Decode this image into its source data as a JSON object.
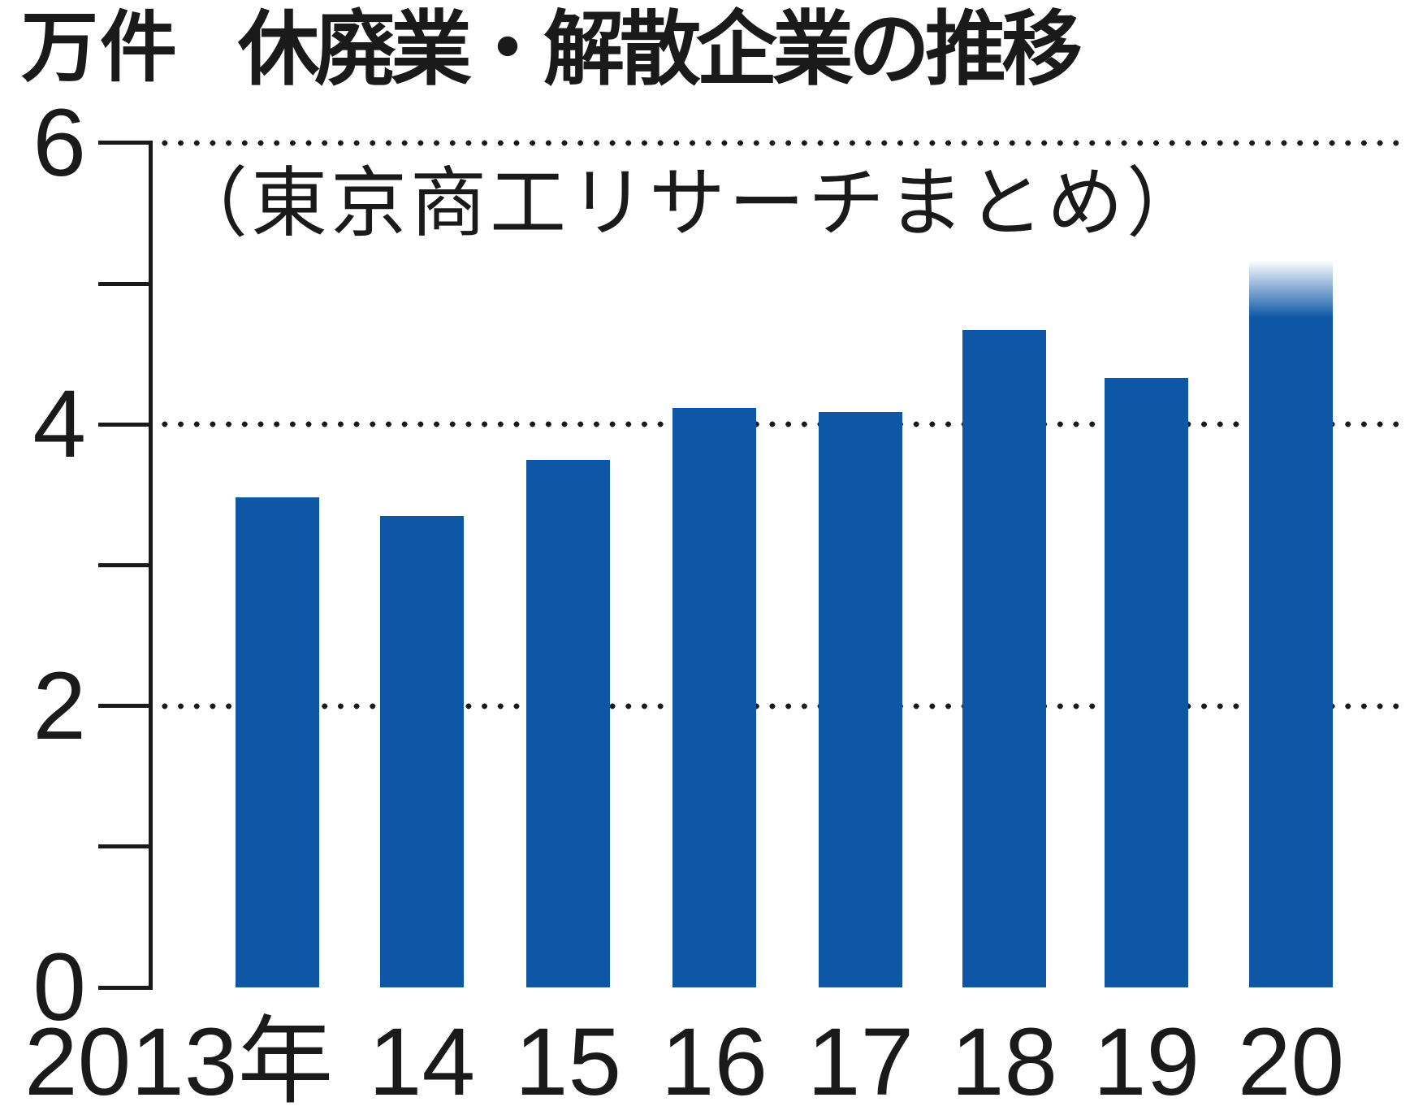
{
  "chart_data": {
    "type": "bar",
    "title": "休廃業・解散企業の推移",
    "subtitle": "（東京商工リサーチまとめ）",
    "unit_label": "万件",
    "categories": [
      "2013年",
      "14",
      "15",
      "16",
      "17",
      "18",
      "19",
      "20"
    ],
    "values": [
      3.48,
      3.35,
      3.75,
      4.12,
      4.09,
      4.67,
      4.33,
      5.0
    ],
    "ylim": [
      0,
      6
    ],
    "ytick_values": [
      6,
      4,
      2,
      0
    ],
    "ytick_labels": [
      "6",
      "4",
      "2",
      "0"
    ],
    "minor_tick_values": [
      5,
      3,
      1
    ],
    "dotted_gridlines_at_values": [
      6,
      4,
      2
    ],
    "grid": "dotted horizontal lines at 2, 4, 6; no baseline across bars",
    "legend_position": "none",
    "bar_color": "#0d57a6",
    "text_color": "#1a1a1a",
    "background_color": "#ffffff",
    "last_bar_projection": {
      "applies_to_category": "20",
      "fade_top_value": 5.17,
      "solid_top_value": 4.76,
      "style": "bar top fades out with white gradient (estimate/projection)"
    }
  }
}
